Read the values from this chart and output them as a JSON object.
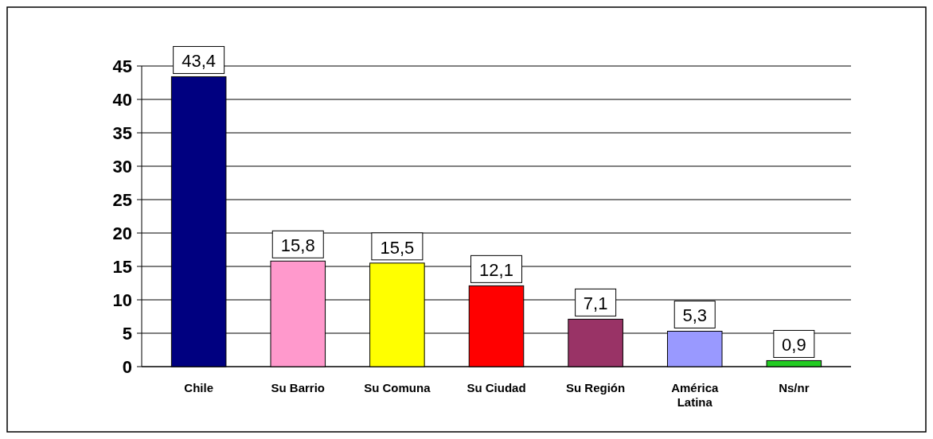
{
  "chart_data": {
    "type": "bar",
    "categories": [
      "Chile",
      "Su Barrio",
      "Su Comuna",
      "Su Ciudad",
      "Su Región",
      "América Latina",
      "Ns/nr"
    ],
    "values": [
      43.4,
      15.8,
      15.5,
      12.1,
      7.1,
      5.3,
      0.9
    ],
    "colors": [
      "#000080",
      "#ff99cc",
      "#ffff00",
      "#ff0000",
      "#993366",
      "#9999ff",
      "#22cc22"
    ],
    "value_labels": [
      "43,4",
      "15,8",
      "15,5",
      "12,1",
      "7,1",
      "5,3",
      "0,9"
    ],
    "ylim": [
      0,
      45
    ],
    "yticks": [
      0,
      5,
      10,
      15,
      20,
      25,
      30,
      35,
      40,
      45
    ],
    "grid": "y"
  }
}
